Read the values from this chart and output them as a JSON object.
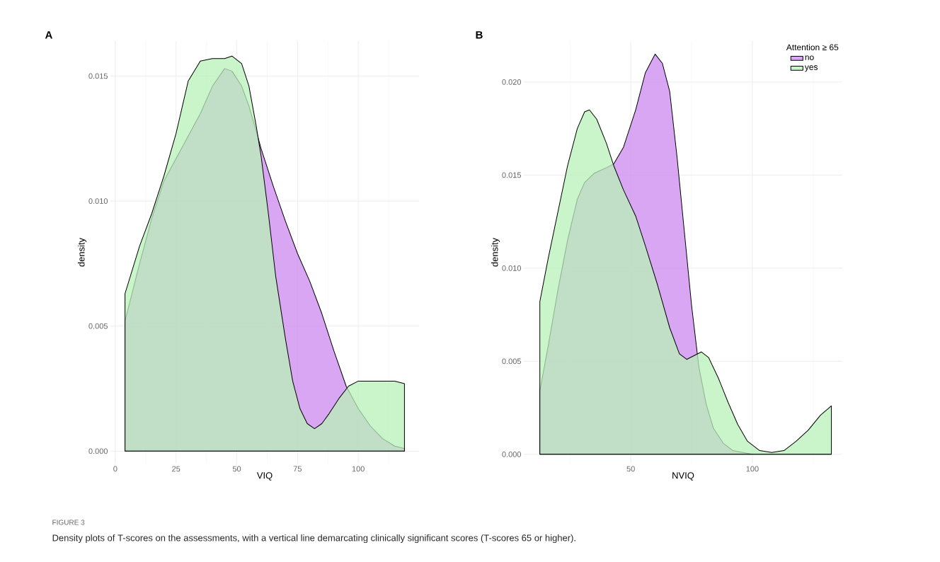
{
  "chart_data": [
    {
      "type": "area",
      "title": "A",
      "xlabel": "VIQ",
      "ylabel": "density",
      "xlim": [
        -2,
        125
      ],
      "ylim": [
        -0.0005,
        0.0164
      ],
      "xticks": [
        0,
        25,
        50,
        75,
        100
      ],
      "yticks": [
        {
          "value": 0,
          "label": "0.000"
        },
        {
          "value": 0.005,
          "label": "0.005"
        },
        {
          "value": 0.01,
          "label": "0.010"
        },
        {
          "value": 0.015,
          "label": "0.015"
        }
      ],
      "grid": true,
      "annotations": [
        "FIGURE 3",
        "Density plots of T-scores on the assessments, with a vertical line demarcating clinically significant scores (T-scores 65 or higher)."
      ],
      "series": [
        {
          "color": "#cc88f0",
          "x": [
            4,
            10,
            15,
            20,
            25,
            30,
            35,
            40,
            45,
            48,
            52,
            55,
            58,
            60,
            65,
            70,
            75,
            80,
            85,
            90,
            95,
            100,
            105,
            110,
            115,
            119
          ],
          "values": [
            0.0052,
            0.0075,
            0.0093,
            0.0108,
            0.0117,
            0.0126,
            0.0135,
            0.0146,
            0.0153,
            0.0152,
            0.0146,
            0.0138,
            0.0128,
            0.0121,
            0.0106,
            0.0092,
            0.0079,
            0.0068,
            0.0055,
            0.004,
            0.0026,
            0.0017,
            0.001,
            0.0005,
            0.0002,
            0.0001
          ]
        },
        {
          "color": "#b8f0b8",
          "x": [
            4,
            10,
            15,
            20,
            25,
            30,
            35,
            40,
            45,
            48,
            52,
            55,
            58,
            60,
            63,
            66,
            70,
            73,
            76,
            79,
            82,
            85,
            88,
            92,
            96,
            100,
            105,
            110,
            115,
            119
          ],
          "values": [
            0.0063,
            0.0082,
            0.0095,
            0.011,
            0.0127,
            0.0148,
            0.0156,
            0.0157,
            0.0157,
            0.0158,
            0.0155,
            0.0146,
            0.013,
            0.0118,
            0.0095,
            0.007,
            0.0045,
            0.0028,
            0.0017,
            0.0011,
            0.0009,
            0.0011,
            0.0015,
            0.0021,
            0.0026,
            0.0028,
            0.0028,
            0.0028,
            0.0028,
            0.0027
          ]
        }
      ]
    },
    {
      "type": "area",
      "title": "B",
      "xlabel": "NVIQ",
      "ylabel": "density",
      "legend_title": "Attention ≥ 65",
      "legend": "top right",
      "xlim": [
        6,
        137
      ],
      "ylim": [
        -0.0005,
        0.0222
      ],
      "xticks": [
        50,
        100
      ],
      "yticks": [
        {
          "value": 0,
          "label": "0.000"
        },
        {
          "value": 0.005,
          "label": "0.005"
        },
        {
          "value": 0.01,
          "label": "0.010"
        },
        {
          "value": 0.015,
          "label": "0.015"
        },
        {
          "value": 0.02,
          "label": "0.020"
        }
      ],
      "grid": true,
      "series": [
        {
          "name": "no",
          "color": "#cc88f0",
          "x": [
            12.6,
            16,
            20,
            24,
            28,
            31,
            35,
            40,
            43,
            47,
            52,
            56,
            60,
            63,
            66,
            69,
            72,
            75,
            78,
            81,
            84,
            88,
            92,
            96,
            100,
            110,
            120,
            132.5
          ],
          "values": [
            0.0034,
            0.0058,
            0.0088,
            0.0115,
            0.0137,
            0.0146,
            0.0151,
            0.0154,
            0.0156,
            0.0165,
            0.0185,
            0.0205,
            0.0215,
            0.021,
            0.0195,
            0.016,
            0.012,
            0.008,
            0.0047,
            0.0027,
            0.0014,
            0.0006,
            0.0002,
            0.0001,
            0,
            0,
            0,
            0
          ]
        },
        {
          "name": "yes",
          "color": "#b8f0b8",
          "x": [
            12.6,
            16,
            20,
            24,
            28,
            31,
            33,
            36,
            40,
            43,
            47,
            52,
            56,
            61,
            66,
            70,
            73,
            76,
            79,
            82,
            86,
            90,
            94,
            98,
            103,
            108,
            113,
            118,
            123,
            128,
            132.5
          ],
          "values": [
            0.0082,
            0.0105,
            0.013,
            0.0155,
            0.0175,
            0.0184,
            0.0185,
            0.018,
            0.0167,
            0.0155,
            0.0142,
            0.0128,
            0.0112,
            0.0091,
            0.0068,
            0.0054,
            0.0051,
            0.0053,
            0.0055,
            0.0052,
            0.0041,
            0.0028,
            0.0016,
            0.0007,
            0.0002,
            0.0001,
            0.0002,
            0.0007,
            0.0013,
            0.0021,
            0.0026
          ]
        }
      ]
    }
  ]
}
